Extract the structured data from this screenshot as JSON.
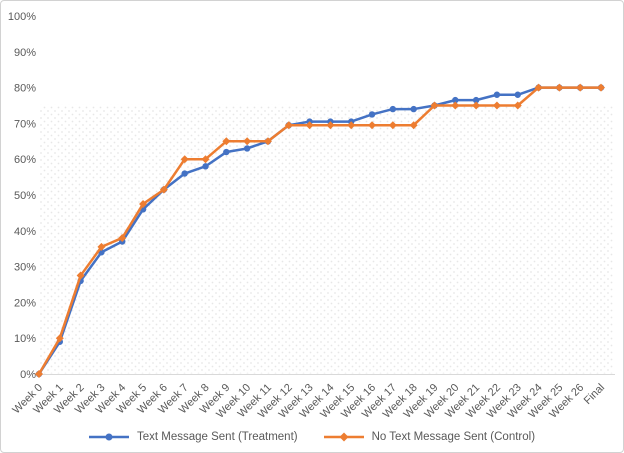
{
  "chart_data": {
    "type": "line",
    "title": "",
    "categories": [
      "Week 0",
      "Week 1",
      "Week 2",
      "Week 3",
      "Week 4",
      "Week 5",
      "Week 6",
      "Week 7",
      "Week 8",
      "Week 9",
      "Week 10",
      "Week 11",
      "Week 12",
      "Week 13",
      "Week 14",
      "Week 15",
      "Week 16",
      "Week 17",
      "Week 18",
      "Week 19",
      "Week 20",
      "Week 21",
      "Week 22",
      "Week 23",
      "Week 24",
      "Week 25",
      "Week 26",
      "Final"
    ],
    "series": [
      {
        "name": "Text Message Sent (Treatment)",
        "color": "#4472C4",
        "marker": "circle",
        "values": [
          0,
          9,
          26,
          34,
          37,
          46,
          51.5,
          56,
          58,
          62,
          63,
          65,
          69.5,
          70.5,
          70.5,
          70.5,
          72.5,
          74,
          74,
          75,
          76.5,
          76.5,
          78,
          78,
          80,
          80,
          80,
          80
        ]
      },
      {
        "name": "No Text Message Sent (Control)",
        "color": "#ED7D31",
        "marker": "diamond",
        "values": [
          0,
          10,
          27.5,
          35.5,
          38,
          47.5,
          51.5,
          60,
          60,
          65,
          65,
          65,
          69.5,
          69.5,
          69.5,
          69.5,
          69.5,
          69.5,
          69.5,
          75,
          75,
          75,
          75,
          75,
          80,
          80,
          80,
          80
        ]
      }
    ],
    "y_axis": {
      "min": 0,
      "max": 100,
      "step": 10,
      "tick_labels": [
        "0%",
        "10%",
        "20%",
        "30%",
        "40%",
        "50%",
        "60%",
        "70%",
        "80%",
        "90%",
        "100%"
      ],
      "format": "percent"
    },
    "x_axis": {
      "label_rotation_deg": -45
    },
    "legend_position": "bottom",
    "grid": false,
    "styles": {
      "axis_line_color": "#D9D9D9",
      "tick_text_color": "#595959",
      "background": "#FFFFFF",
      "frame_border_color": "#D2D2D2",
      "texture_dot_color": "#E7E7E7",
      "texture_band_top_value": 76
    }
  }
}
